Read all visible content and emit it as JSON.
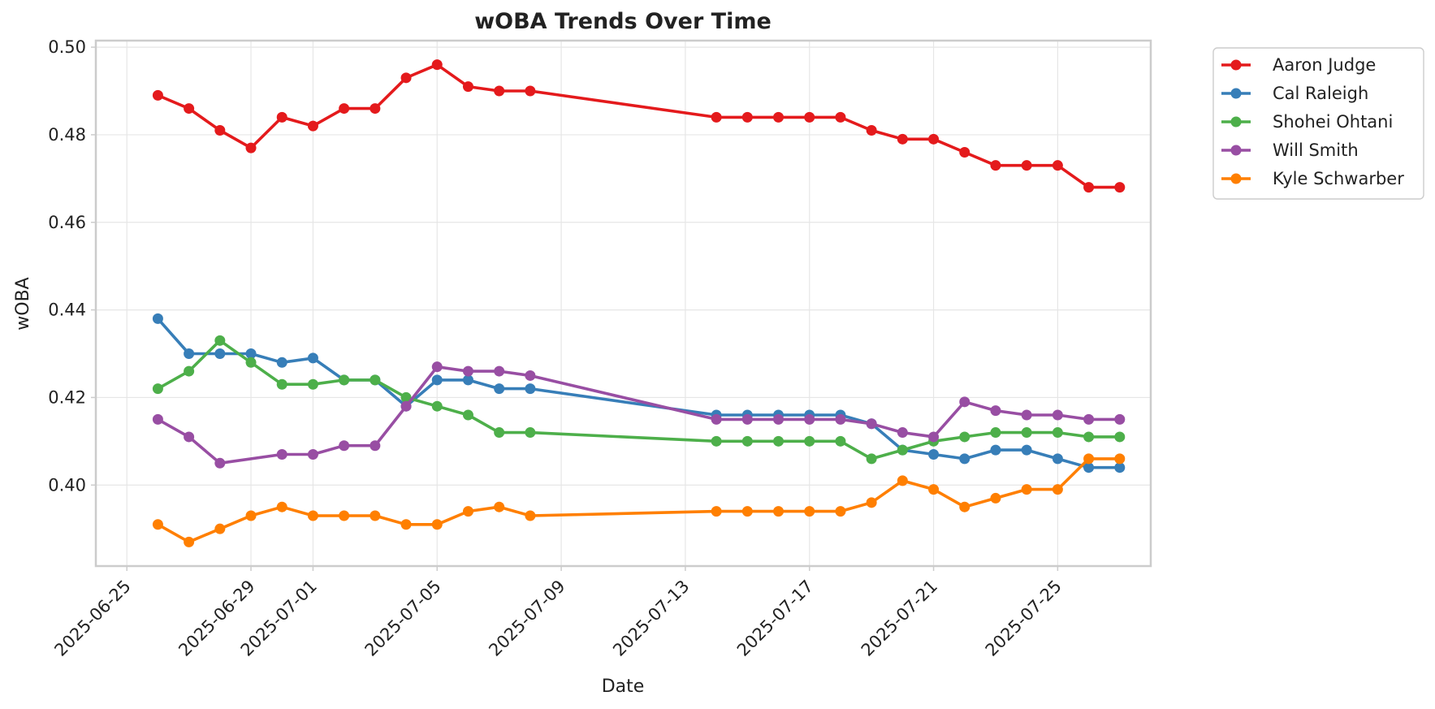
{
  "chart_data": {
    "type": "line",
    "title": "wOBA Trends Over Time",
    "xlabel": "Date",
    "ylabel": "wOBA",
    "x_type": "date",
    "xlim": [
      "2025-06-24",
      "2025-07-28"
    ],
    "ylim": [
      0.3815,
      0.5015
    ],
    "y_ticks": [
      0.4,
      0.42,
      0.44,
      0.46,
      0.48,
      0.5
    ],
    "y_tick_labels": [
      "0.40",
      "0.42",
      "0.44",
      "0.46",
      "0.48",
      "0.50"
    ],
    "x_ticks": [
      "2025-06-25",
      "2025-06-29",
      "2025-07-01",
      "2025-07-05",
      "2025-07-09",
      "2025-07-13",
      "2025-07-17",
      "2025-07-21",
      "2025-07-25"
    ],
    "grid": true,
    "legend_position": "outside-top-right",
    "series": [
      {
        "name": "Aaron Judge",
        "color": "#e41a1c",
        "points": [
          [
            "2025-06-26",
            0.489
          ],
          [
            "2025-06-27",
            0.486
          ],
          [
            "2025-06-28",
            0.481
          ],
          [
            "2025-06-29",
            0.477
          ],
          [
            "2025-06-30",
            0.484
          ],
          [
            "2025-07-01",
            0.482
          ],
          [
            "2025-07-02",
            0.486
          ],
          [
            "2025-07-03",
            0.486
          ],
          [
            "2025-07-04",
            0.493
          ],
          [
            "2025-07-05",
            0.496
          ],
          [
            "2025-07-06",
            0.491
          ],
          [
            "2025-07-07",
            0.49
          ],
          [
            "2025-07-08",
            0.49
          ],
          [
            "2025-07-14",
            0.484
          ],
          [
            "2025-07-15",
            0.484
          ],
          [
            "2025-07-16",
            0.484
          ],
          [
            "2025-07-17",
            0.484
          ],
          [
            "2025-07-18",
            0.484
          ],
          [
            "2025-07-19",
            0.481
          ],
          [
            "2025-07-20",
            0.479
          ],
          [
            "2025-07-21",
            0.479
          ],
          [
            "2025-07-22",
            0.476
          ],
          [
            "2025-07-23",
            0.473
          ],
          [
            "2025-07-24",
            0.473
          ],
          [
            "2025-07-25",
            0.473
          ],
          [
            "2025-07-26",
            0.468
          ],
          [
            "2025-07-27",
            0.468
          ]
        ]
      },
      {
        "name": "Cal Raleigh",
        "color": "#377eb8",
        "points": [
          [
            "2025-06-26",
            0.438
          ],
          [
            "2025-06-27",
            0.43
          ],
          [
            "2025-06-28",
            0.43
          ],
          [
            "2025-06-29",
            0.43
          ],
          [
            "2025-06-30",
            0.428
          ],
          [
            "2025-07-01",
            0.429
          ],
          [
            "2025-07-02",
            0.424
          ],
          [
            "2025-07-03",
            0.424
          ],
          [
            "2025-07-04",
            0.418
          ],
          [
            "2025-07-05",
            0.424
          ],
          [
            "2025-07-06",
            0.424
          ],
          [
            "2025-07-07",
            0.422
          ],
          [
            "2025-07-08",
            0.422
          ],
          [
            "2025-07-14",
            0.416
          ],
          [
            "2025-07-15",
            0.416
          ],
          [
            "2025-07-16",
            0.416
          ],
          [
            "2025-07-17",
            0.416
          ],
          [
            "2025-07-18",
            0.416
          ],
          [
            "2025-07-19",
            0.414
          ],
          [
            "2025-07-20",
            0.408
          ],
          [
            "2025-07-21",
            0.407
          ],
          [
            "2025-07-22",
            0.406
          ],
          [
            "2025-07-23",
            0.408
          ],
          [
            "2025-07-24",
            0.408
          ],
          [
            "2025-07-25",
            0.406
          ],
          [
            "2025-07-26",
            0.404
          ],
          [
            "2025-07-27",
            0.404
          ]
        ]
      },
      {
        "name": "Shohei Ohtani",
        "color": "#4daf4a",
        "points": [
          [
            "2025-06-26",
            0.422
          ],
          [
            "2025-06-27",
            0.426
          ],
          [
            "2025-06-28",
            0.433
          ],
          [
            "2025-06-29",
            0.428
          ],
          [
            "2025-06-30",
            0.423
          ],
          [
            "2025-07-01",
            0.423
          ],
          [
            "2025-07-02",
            0.424
          ],
          [
            "2025-07-03",
            0.424
          ],
          [
            "2025-07-04",
            0.42
          ],
          [
            "2025-07-05",
            0.418
          ],
          [
            "2025-07-06",
            0.416
          ],
          [
            "2025-07-07",
            0.412
          ],
          [
            "2025-07-08",
            0.412
          ],
          [
            "2025-07-14",
            0.41
          ],
          [
            "2025-07-15",
            0.41
          ],
          [
            "2025-07-16",
            0.41
          ],
          [
            "2025-07-17",
            0.41
          ],
          [
            "2025-07-18",
            0.41
          ],
          [
            "2025-07-19",
            0.406
          ],
          [
            "2025-07-20",
            0.408
          ],
          [
            "2025-07-21",
            0.41
          ],
          [
            "2025-07-22",
            0.411
          ],
          [
            "2025-07-23",
            0.412
          ],
          [
            "2025-07-24",
            0.412
          ],
          [
            "2025-07-25",
            0.412
          ],
          [
            "2025-07-26",
            0.411
          ],
          [
            "2025-07-27",
            0.411
          ]
        ]
      },
      {
        "name": "Will Smith",
        "color": "#984ea3",
        "points": [
          [
            "2025-06-26",
            0.415
          ],
          [
            "2025-06-27",
            0.411
          ],
          [
            "2025-06-28",
            0.405
          ],
          [
            "2025-06-30",
            0.407
          ],
          [
            "2025-07-01",
            0.407
          ],
          [
            "2025-07-02",
            0.409
          ],
          [
            "2025-07-03",
            0.409
          ],
          [
            "2025-07-04",
            0.418
          ],
          [
            "2025-07-05",
            0.427
          ],
          [
            "2025-07-06",
            0.426
          ],
          [
            "2025-07-07",
            0.426
          ],
          [
            "2025-07-08",
            0.425
          ],
          [
            "2025-07-14",
            0.415
          ],
          [
            "2025-07-15",
            0.415
          ],
          [
            "2025-07-16",
            0.415
          ],
          [
            "2025-07-17",
            0.415
          ],
          [
            "2025-07-18",
            0.415
          ],
          [
            "2025-07-19",
            0.414
          ],
          [
            "2025-07-20",
            0.412
          ],
          [
            "2025-07-21",
            0.411
          ],
          [
            "2025-07-22",
            0.419
          ],
          [
            "2025-07-23",
            0.417
          ],
          [
            "2025-07-24",
            0.416
          ],
          [
            "2025-07-25",
            0.416
          ],
          [
            "2025-07-26",
            0.415
          ],
          [
            "2025-07-27",
            0.415
          ]
        ]
      },
      {
        "name": "Kyle Schwarber",
        "color": "#ff7f00",
        "points": [
          [
            "2025-06-26",
            0.391
          ],
          [
            "2025-06-27",
            0.387
          ],
          [
            "2025-06-28",
            0.39
          ],
          [
            "2025-06-29",
            0.393
          ],
          [
            "2025-06-30",
            0.395
          ],
          [
            "2025-07-01",
            0.393
          ],
          [
            "2025-07-02",
            0.393
          ],
          [
            "2025-07-03",
            0.393
          ],
          [
            "2025-07-04",
            0.391
          ],
          [
            "2025-07-05",
            0.391
          ],
          [
            "2025-07-06",
            0.394
          ],
          [
            "2025-07-07",
            0.395
          ],
          [
            "2025-07-08",
            0.393
          ],
          [
            "2025-07-14",
            0.394
          ],
          [
            "2025-07-15",
            0.394
          ],
          [
            "2025-07-16",
            0.394
          ],
          [
            "2025-07-17",
            0.394
          ],
          [
            "2025-07-18",
            0.394
          ],
          [
            "2025-07-19",
            0.396
          ],
          [
            "2025-07-20",
            0.401
          ],
          [
            "2025-07-21",
            0.399
          ],
          [
            "2025-07-22",
            0.395
          ],
          [
            "2025-07-23",
            0.397
          ],
          [
            "2025-07-24",
            0.399
          ],
          [
            "2025-07-25",
            0.399
          ],
          [
            "2025-07-26",
            0.406
          ],
          [
            "2025-07-27",
            0.406
          ]
        ]
      }
    ]
  }
}
